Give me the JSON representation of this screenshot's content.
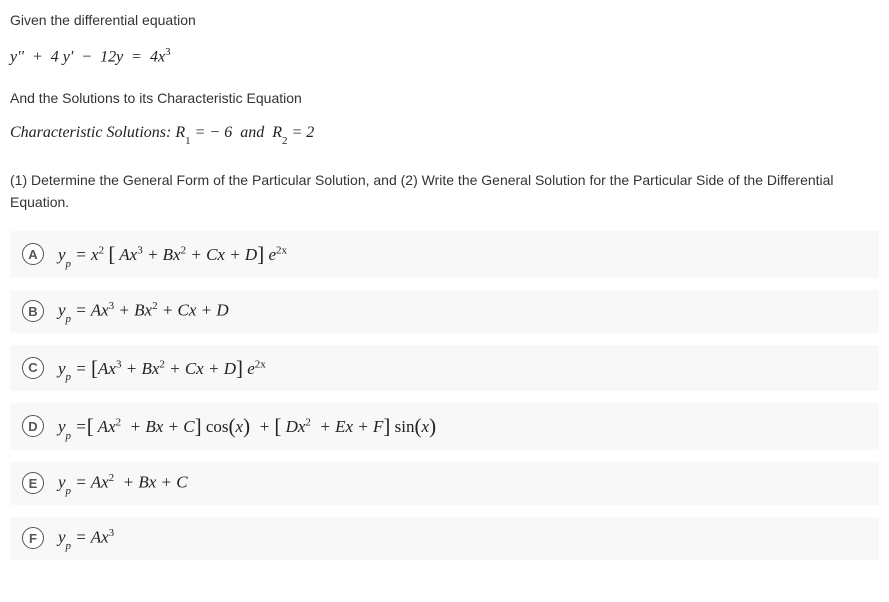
{
  "intro": {
    "line1": "Given the differential equation",
    "equation_html": "y''  +  4 y'  −  12y  =  4x<sup>3</sup>",
    "line2": "And the Solutions to its Characteristic Equation",
    "char_html": "Characteristic Solutions: R<sub>1</sub> = − 6  and  R<sub>2</sub> = 2",
    "question": "(1) Determine the General Form of the Particular Solution, and (2) Write the General Solution for the Particular Side of the Differential Equation."
  },
  "options": [
    {
      "letter": "A",
      "math": "y<sub>p</sub> = x<sup>2</sup> <span class=\"big\">[</span> Ax<sup>3</sup> + Bx<sup>2</sup> + Cx + D<span class=\"big\">]</span> e<sup>2x</sup>"
    },
    {
      "letter": "B",
      "math": "y<sub>p</sub> = Ax<sup>3</sup> + Bx<sup>2</sup> + Cx + D"
    },
    {
      "letter": "C",
      "math": "y<sub>p</sub> = <span class=\"big\">[</span>Ax<sup>3</sup> + Bx<sup>2</sup> + Cx + D<span class=\"big\">]</span> e<sup>2x</sup>"
    },
    {
      "letter": "D",
      "math": "y<sub>p</sub> =<span class=\"big\">[</span> Ax<sup>2</sup>  + Bx + C<span class=\"big\">]</span> <span class=\"nrm\">cos</span><span class=\"big\">(</span>x<span class=\"big\">)</span>  + <span class=\"big\">[</span> Dx<sup>2</sup>  + Ex + F<span class=\"big\">]</span> <span class=\"nrm\">sin</span><span class=\"big\">(</span>x<span class=\"big\">)</span>"
    },
    {
      "letter": "E",
      "math": "y<sub>p</sub> = Ax<sup>2</sup>  + Bx + C"
    },
    {
      "letter": "F",
      "math": "y<sub>p</sub> = Ax<sup>3</sup>"
    }
  ]
}
